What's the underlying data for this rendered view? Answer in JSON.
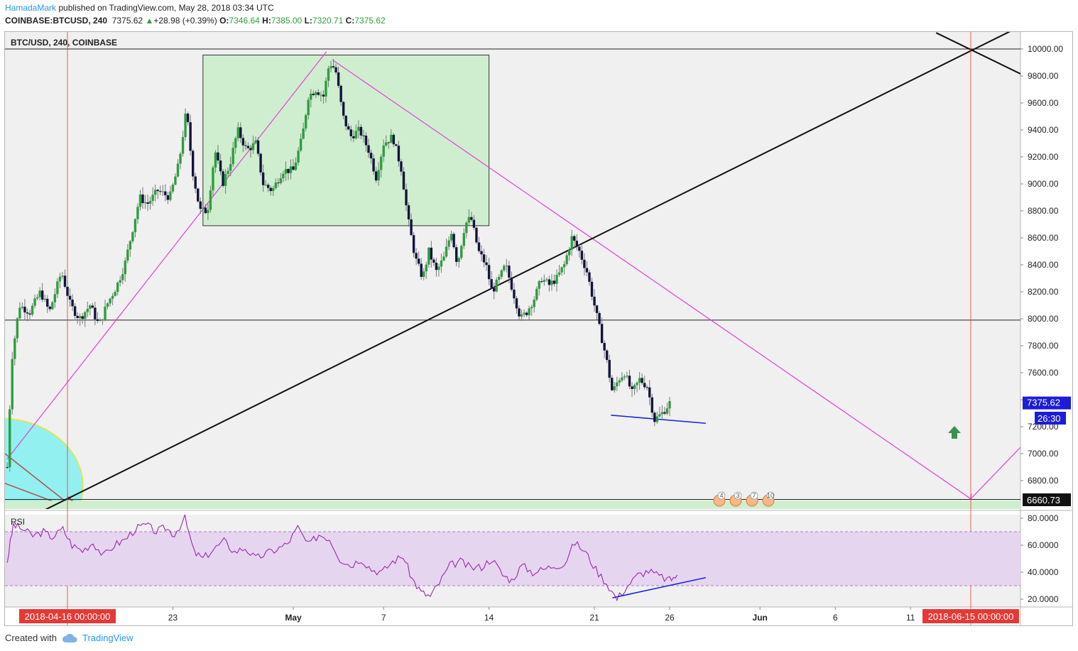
{
  "header": {
    "author": "HamadaMark",
    "published": "published on TradingView.com, May 28, 2018 03:34 UTC",
    "symbol": "COINBASE:BTCUSD, 240",
    "last": "7375.62",
    "change": "+28.98 (+0.39%)",
    "o_label": "O:",
    "o": "7346.64",
    "h_label": "H:",
    "h": "7385.00",
    "l_label": "L:",
    "l": "7320.71",
    "c_label": "C:",
    "c": "7375.62"
  },
  "pane_title": "BTC/USD, 240, COINBASE",
  "rsi_label": "RSI",
  "footer": {
    "created": "Created with",
    "brand": "TradingView"
  },
  "colors": {
    "up": "#2e9e3e",
    "down": "#13133f",
    "green_box": "#cfeecf",
    "magenta": "#e040e0",
    "rsi_fill": "#e6d5ef",
    "rsi_line": "#9c27b0",
    "accent": "#2196f3",
    "red_time": "#e53935"
  },
  "chart_data": {
    "type": "candlestick",
    "ylim": [
      6500,
      10150
    ],
    "y_ticks": [
      10000,
      9800,
      9600,
      9400,
      9200,
      9000,
      8800,
      8600,
      8400,
      8200,
      8000,
      7800,
      7600,
      7400,
      7200,
      7000,
      6800
    ],
    "y_tick_labels": [
      "10000.00",
      "9800.00",
      "9600.00",
      "9400.00",
      "9200.00",
      "9000.00",
      "8800.00",
      "8600.00",
      "8400.00",
      "8200.00",
      "8000.00",
      "7800.00",
      "7600.00",
      "7400.00",
      "7200.00",
      "7000.00",
      "6800.00"
    ],
    "x_ticks": [
      {
        "day": 7,
        "label": "23"
      },
      {
        "day": 15,
        "label": "May"
      },
      {
        "day": 21,
        "label": "7"
      },
      {
        "day": 28,
        "label": "14"
      },
      {
        "day": 35,
        "label": "21"
      },
      {
        "day": 40,
        "label": "26"
      },
      {
        "day": 46,
        "label": "Jun"
      },
      {
        "day": 51,
        "label": "6"
      },
      {
        "day": 56,
        "label": "11"
      }
    ],
    "x_highlight_left": {
      "day": 0,
      "label": "2018-04-16 00:00:00"
    },
    "x_highlight_right": {
      "day": 60,
      "label": "2018-06-15 00:00:00"
    },
    "price_label": {
      "value": 7375.62,
      "text": "7375.62"
    },
    "countdown_label": {
      "value": 7260,
      "text": "26:30"
    },
    "level_label": {
      "value": 6660.73,
      "text": "6660.73"
    },
    "hlines": [
      10000,
      7990,
      6660.73
    ],
    "anchors": [
      [
        -4,
        6900
      ],
      [
        -3.7,
        7700
      ],
      [
        -3.2,
        8100
      ],
      [
        -2.5,
        8050
      ],
      [
        -1.8,
        8200
      ],
      [
        -1.2,
        8050
      ],
      [
        -0.4,
        8350
      ],
      [
        0.2,
        8100
      ],
      [
        0.8,
        8000
      ],
      [
        1.5,
        8100
      ],
      [
        2.1,
        7950
      ],
      [
        2.6,
        8100
      ],
      [
        3.3,
        8250
      ],
      [
        3.8,
        8400
      ],
      [
        4.3,
        8650
      ],
      [
        4.8,
        8900
      ],
      [
        5.3,
        8850
      ],
      [
        6.0,
        8950
      ],
      [
        6.8,
        8900
      ],
      [
        7.4,
        9150
      ],
      [
        7.9,
        9550
      ],
      [
        8.3,
        9100
      ],
      [
        8.8,
        8800
      ],
      [
        9.3,
        8800
      ],
      [
        9.8,
        9250
      ],
      [
        10.3,
        9000
      ],
      [
        10.8,
        9150
      ],
      [
        11.3,
        9400
      ],
      [
        11.9,
        9250
      ],
      [
        12.5,
        9300
      ],
      [
        13.0,
        9000
      ],
      [
        13.6,
        8950
      ],
      [
        14.3,
        9100
      ],
      [
        15.0,
        9100
      ],
      [
        15.6,
        9350
      ],
      [
        16.0,
        9650
      ],
      [
        16.5,
        9700
      ],
      [
        17.0,
        9650
      ],
      [
        17.4,
        9900
      ],
      [
        17.8,
        9850
      ],
      [
        18.3,
        9500
      ],
      [
        18.8,
        9350
      ],
      [
        19.4,
        9400
      ],
      [
        20.0,
        9250
      ],
      [
        20.5,
        9050
      ],
      [
        21.0,
        9300
      ],
      [
        21.6,
        9350
      ],
      [
        22.2,
        9100
      ],
      [
        22.6,
        8750
      ],
      [
        23.1,
        8450
      ],
      [
        23.6,
        8300
      ],
      [
        24.0,
        8500
      ],
      [
        24.5,
        8350
      ],
      [
        25.0,
        8450
      ],
      [
        25.5,
        8650
      ],
      [
        25.9,
        8400
      ],
      [
        26.4,
        8700
      ],
      [
        26.8,
        8750
      ],
      [
        27.3,
        8500
      ],
      [
        27.8,
        8400
      ],
      [
        28.2,
        8200
      ],
      [
        28.7,
        8300
      ],
      [
        29.1,
        8400
      ],
      [
        29.6,
        8200
      ],
      [
        30.1,
        8000
      ],
      [
        30.5,
        8050
      ],
      [
        31.0,
        8150
      ],
      [
        31.5,
        8300
      ],
      [
        32.0,
        8250
      ],
      [
        32.5,
        8300
      ],
      [
        33.0,
        8400
      ],
      [
        33.5,
        8600
      ],
      [
        34.0,
        8500
      ],
      [
        34.5,
        8350
      ],
      [
        35.0,
        8100
      ],
      [
        35.4,
        7900
      ],
      [
        35.8,
        7700
      ],
      [
        36.2,
        7450
      ],
      [
        36.6,
        7550
      ],
      [
        37.0,
        7600
      ],
      [
        37.5,
        7450
      ],
      [
        38.0,
        7550
      ],
      [
        38.5,
        7500
      ],
      [
        39.0,
        7250
      ],
      [
        39.5,
        7300
      ],
      [
        40.0,
        7375
      ]
    ],
    "rsi": {
      "ylim": [
        15,
        85
      ],
      "ticks": [
        80,
        60,
        40,
        20
      ],
      "tick_labels": [
        "80.0000",
        "60.0000",
        "40.0000",
        "20.0000"
      ],
      "band": [
        30,
        70
      ],
      "anchors": [
        [
          -4,
          48
        ],
        [
          -3.6,
          75
        ],
        [
          -3,
          72
        ],
        [
          -2.3,
          67
        ],
        [
          -1.6,
          70
        ],
        [
          -1,
          66
        ],
        [
          -0.3,
          72
        ],
        [
          0.3,
          60
        ],
        [
          1,
          56
        ],
        [
          1.7,
          62
        ],
        [
          2.4,
          52
        ],
        [
          3.1,
          60
        ],
        [
          3.8,
          64
        ],
        [
          4.5,
          72
        ],
        [
          5.2,
          75
        ],
        [
          5.9,
          70
        ],
        [
          6.5,
          73
        ],
        [
          7.1,
          68
        ],
        [
          7.8,
          80
        ],
        [
          8.4,
          55
        ],
        [
          9,
          50
        ],
        [
          9.7,
          57
        ],
        [
          10.4,
          63
        ],
        [
          11.1,
          55
        ],
        [
          11.8,
          58
        ],
        [
          12.5,
          50
        ],
        [
          13.2,
          54
        ],
        [
          13.9,
          57
        ],
        [
          14.6,
          61
        ],
        [
          15.3,
          73
        ],
        [
          16,
          60
        ],
        [
          16.7,
          68
        ],
        [
          17.4,
          65
        ],
        [
          18.1,
          50
        ],
        [
          18.8,
          45
        ],
        [
          19.5,
          50
        ],
        [
          20.2,
          42
        ],
        [
          20.9,
          40
        ],
        [
          21.6,
          48
        ],
        [
          22.3,
          52
        ],
        [
          22.9,
          35
        ],
        [
          23.5,
          25
        ],
        [
          24.1,
          22
        ],
        [
          24.7,
          32
        ],
        [
          25.4,
          45
        ],
        [
          26.1,
          48
        ],
        [
          26.8,
          43
        ],
        [
          27.5,
          44
        ],
        [
          28.2,
          50
        ],
        [
          28.9,
          38
        ],
        [
          29.5,
          34
        ],
        [
          30.2,
          45
        ],
        [
          30.9,
          40
        ],
        [
          31.6,
          42
        ],
        [
          32.3,
          45
        ],
        [
          33,
          46
        ],
        [
          33.7,
          62
        ],
        [
          34.4,
          55
        ],
        [
          35.1,
          42
        ],
        [
          35.8,
          32
        ],
        [
          36.5,
          20
        ],
        [
          37.2,
          30
        ],
        [
          37.9,
          38
        ],
        [
          38.6,
          41
        ],
        [
          39.3,
          37
        ],
        [
          40,
          34
        ],
        [
          40.5,
          38
        ]
      ]
    }
  }
}
